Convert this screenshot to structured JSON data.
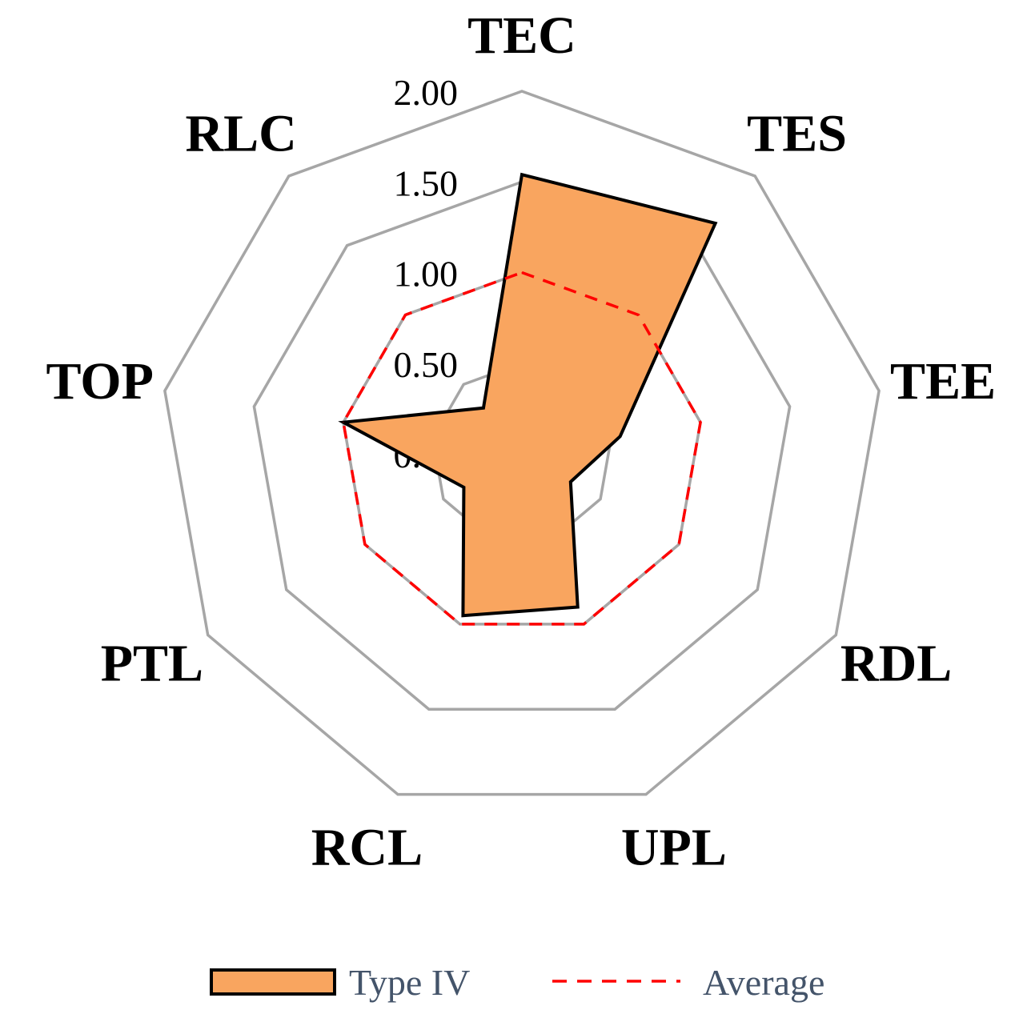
{
  "chart_data": {
    "type": "radar",
    "categories": [
      "TEC",
      "TES",
      "TEE",
      "RDL",
      "UPL",
      "RCL",
      "PTL",
      "TOP",
      "RLC"
    ],
    "rlim": [
      0,
      2
    ],
    "ticks": [
      "0.00",
      "0.50",
      "1.00",
      "1.50",
      "2.00"
    ],
    "tick_values": [
      0,
      0.5,
      1,
      1.5,
      2
    ],
    "grid": true,
    "legend_position": "bottom",
    "series": [
      {
        "name": "Type IV",
        "values": [
          1.54,
          1.66,
          0.55,
          0.31,
          0.9,
          0.95,
          0.37,
          1.0,
          0.33
        ],
        "fill": "#f9a55f",
        "stroke": "#000000",
        "style": "filled"
      },
      {
        "name": "Average",
        "values": [
          1.0,
          1.0,
          1.0,
          1.0,
          1.0,
          1.0,
          1.0,
          1.0,
          1.0
        ],
        "stroke": "#ff0000",
        "style": "dashed"
      }
    ],
    "grid_color": "#a6a6a6"
  }
}
